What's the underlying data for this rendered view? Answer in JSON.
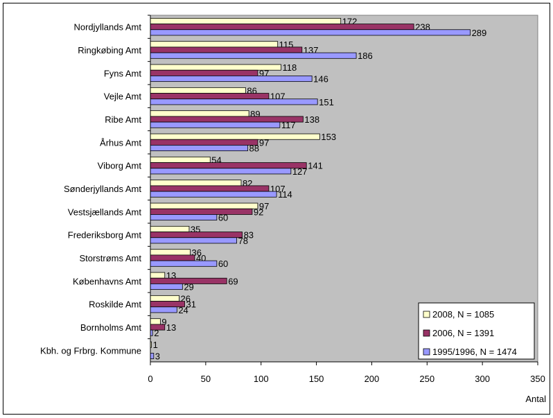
{
  "colors": {
    "plot_background": "#c0c0c0",
    "series_2008": "#ffffcc",
    "series_2006": "#993366",
    "series_1995": "#9999ff",
    "outline": "#000000"
  },
  "chart_data": {
    "type": "bar",
    "orientation": "horizontal",
    "title": "",
    "xlabel": "Antal",
    "ylabel": "",
    "xlim": [
      0,
      350
    ],
    "xticks": [
      0,
      50,
      100,
      150,
      200,
      250,
      300,
      350
    ],
    "grid": false,
    "legend_position": "bottom-right",
    "categories": [
      "Nordjyllands Amt",
      "Ringkøbing Amt",
      "Fyns Amt",
      "Vejle Amt",
      "Ribe Amt",
      "Århus Amt",
      "Viborg Amt",
      "Sønderjyllands Amt",
      "Vestsjællands Amt",
      "Frederiksborg Amt",
      "Storstrøms Amt",
      "Københavns Amt",
      "Roskilde Amt",
      "Bornholms Amt",
      "Kbh. og Frbrg. Kommune"
    ],
    "series": [
      {
        "name": "2008, N = 1085",
        "color": "#ffffcc",
        "values": [
          172,
          115,
          118,
          86,
          89,
          153,
          54,
          82,
          97,
          35,
          36,
          13,
          26,
          9,
          1
        ]
      },
      {
        "name": "2006, N = 1391",
        "color": "#993366",
        "values": [
          238,
          137,
          97,
          107,
          138,
          97,
          141,
          107,
          92,
          83,
          40,
          69,
          31,
          13,
          0
        ]
      },
      {
        "name": "1995/1996, N = 1474",
        "color": "#9999ff",
        "values": [
          289,
          186,
          146,
          151,
          117,
          88,
          127,
          114,
          60,
          78,
          60,
          29,
          24,
          2,
          3
        ]
      }
    ],
    "label_series": [
      [
        "172",
        "115",
        "118",
        "86",
        "89",
        "153",
        "54",
        "82",
        "97",
        "35",
        "36",
        "13",
        "26",
        "9",
        "1"
      ],
      [
        "238",
        "137",
        "97",
        "107",
        "138",
        "97",
        "141",
        "107",
        "92",
        "83",
        "40",
        "69",
        "31",
        "13",
        ""
      ],
      [
        "289",
        "186",
        "146",
        "151",
        "117",
        "88",
        "127",
        "114",
        "60",
        "78",
        "60",
        "29",
        "24",
        "2",
        "3"
      ]
    ]
  }
}
